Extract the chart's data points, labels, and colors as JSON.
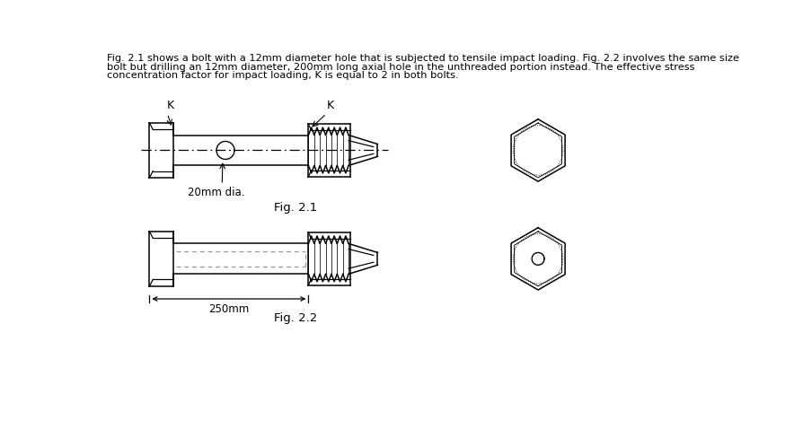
{
  "bg_color": "#ffffff",
  "text_color": "#000000",
  "line_color": "#000000",
  "header_line1": "Fig. 2.1 shows a bolt with a 12mm diameter hole that is subjected to tensile impact loading. Fig. 2.2 involves the same size",
  "header_line2": "bolt but drilling an 12mm diameter, 200mm long axial hole in the unthreaded portion instead. The effective stress",
  "header_line3": "concentration factor for impact loading, K is equal to 2 in both bolts.",
  "fig21_label": "Fig. 2.1",
  "fig22_label": "Fig. 2.2",
  "label_20mm": "20mm dia.",
  "label_250mm": "250mm",
  "label_K": "K"
}
